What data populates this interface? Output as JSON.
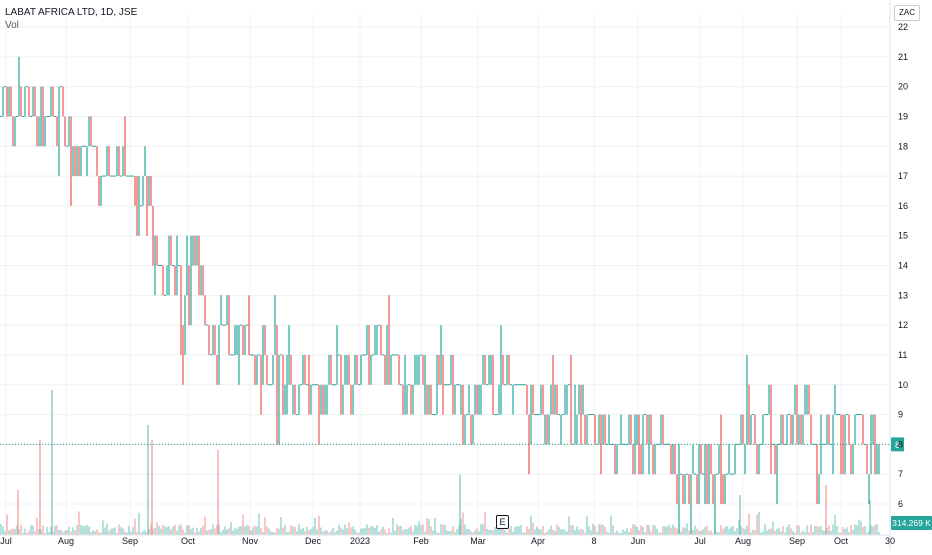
{
  "header": {
    "title": "LABAT AFRICA LTD, 1D, JSE",
    "volume_label": "Vol",
    "currency": "ZAC"
  },
  "colors": {
    "up": "#26a69a",
    "down": "#ef5350",
    "volume_up": "#84cbc3",
    "volume_down": "#f5a3a1",
    "last_price_line": "#26a69a",
    "grid": "#eef0f3"
  },
  "chart_data": {
    "type": "ohlc",
    "interval": "1D",
    "y_axis": {
      "position": "right",
      "ticks": [
        6,
        7,
        8,
        9,
        10,
        11,
        12,
        13,
        14,
        15,
        16,
        17,
        18,
        19,
        20,
        21,
        22
      ],
      "range": [
        5.2,
        22.5
      ]
    },
    "x_axis": {
      "labels": [
        "Jul",
        "Aug",
        "Sep",
        "Oct",
        "Nov",
        "Dec",
        "2023",
        "Feb",
        "Mar",
        "Apr",
        "8",
        "Jun",
        "Jul",
        "Aug",
        "Sep",
        "Oct",
        "30"
      ]
    },
    "last_price": 8,
    "last_price_label": "8",
    "last_volume_label": "314.269 K",
    "event_marker": "E",
    "price_path": [
      [
        0,
        19
      ],
      [
        6,
        20
      ],
      [
        12,
        19
      ],
      [
        18,
        19
      ],
      [
        25,
        21
      ],
      [
        30,
        19
      ],
      [
        38,
        18
      ],
      [
        44,
        19
      ],
      [
        52,
        19
      ],
      [
        60,
        19
      ],
      [
        66,
        18
      ],
      [
        74,
        18
      ],
      [
        82,
        18
      ],
      [
        90,
        18
      ],
      [
        100,
        17
      ],
      [
        110,
        17
      ],
      [
        118,
        17
      ],
      [
        125,
        17
      ],
      [
        132,
        17
      ],
      [
        138,
        16
      ],
      [
        146,
        16
      ],
      [
        152,
        15
      ],
      [
        158,
        14
      ],
      [
        164,
        13
      ],
      [
        170,
        14
      ],
      [
        176,
        13
      ],
      [
        182,
        12
      ],
      [
        188,
        13
      ],
      [
        194,
        14
      ],
      [
        200,
        13
      ],
      [
        206,
        12
      ],
      [
        212,
        12
      ],
      [
        218,
        11
      ],
      [
        224,
        12
      ],
      [
        230,
        11
      ],
      [
        238,
        11
      ],
      [
        246,
        12
      ],
      [
        254,
        11
      ],
      [
        262,
        11
      ],
      [
        270,
        11
      ],
      [
        280,
        10
      ],
      [
        290,
        10
      ],
      [
        300,
        10
      ],
      [
        310,
        10
      ],
      [
        320,
        10
      ],
      [
        330,
        10
      ],
      [
        340,
        10
      ],
      [
        350,
        10
      ],
      [
        360,
        10
      ],
      [
        370,
        11
      ],
      [
        378,
        12
      ],
      [
        382,
        11
      ],
      [
        388,
        11
      ],
      [
        395,
        11
      ],
      [
        402,
        10
      ],
      [
        410,
        10
      ],
      [
        420,
        10
      ],
      [
        430,
        10
      ],
      [
        440,
        10
      ],
      [
        450,
        10
      ],
      [
        460,
        9
      ],
      [
        470,
        9
      ],
      [
        480,
        10
      ],
      [
        488,
        10
      ],
      [
        495,
        9
      ],
      [
        505,
        10
      ],
      [
        512,
        10
      ],
      [
        520,
        10
      ],
      [
        530,
        9
      ],
      [
        540,
        9
      ],
      [
        550,
        9
      ],
      [
        560,
        9
      ],
      [
        568,
        10
      ],
      [
        574,
        8
      ],
      [
        580,
        9
      ],
      [
        590,
        9
      ],
      [
        598,
        8
      ],
      [
        608,
        8
      ],
      [
        618,
        8
      ],
      [
        628,
        8
      ],
      [
        636,
        8
      ],
      [
        644,
        8
      ],
      [
        652,
        8
      ],
      [
        660,
        8
      ],
      [
        670,
        8
      ],
      [
        678,
        7
      ],
      [
        686,
        7
      ],
      [
        694,
        7
      ],
      [
        700,
        7
      ],
      [
        708,
        7
      ],
      [
        716,
        7
      ],
      [
        724,
        7
      ],
      [
        730,
        7
      ],
      [
        738,
        8
      ],
      [
        744,
        9
      ],
      [
        750,
        9
      ],
      [
        758,
        8
      ],
      [
        766,
        9
      ],
      [
        774,
        8
      ],
      [
        782,
        8
      ],
      [
        790,
        9
      ],
      [
        798,
        9
      ],
      [
        806,
        9
      ],
      [
        814,
        8
      ],
      [
        818,
        7
      ],
      [
        824,
        8
      ],
      [
        830,
        8
      ],
      [
        838,
        9
      ],
      [
        846,
        8
      ],
      [
        852,
        8
      ],
      [
        858,
        9
      ],
      [
        864,
        8
      ],
      [
        870,
        8
      ],
      [
        876,
        8
      ],
      [
        879,
        8
      ]
    ],
    "volume_spikes": [
      [
        40,
        95,
        "down"
      ],
      [
        52,
        145,
        "up"
      ],
      [
        148,
        110,
        "up"
      ],
      [
        152,
        95,
        "down"
      ],
      [
        218,
        85,
        "down"
      ],
      [
        18,
        45,
        "down"
      ],
      [
        460,
        60,
        "up"
      ],
      [
        826,
        50,
        "down"
      ],
      [
        740,
        40,
        "up"
      ],
      [
        870,
        35,
        "up"
      ]
    ]
  }
}
